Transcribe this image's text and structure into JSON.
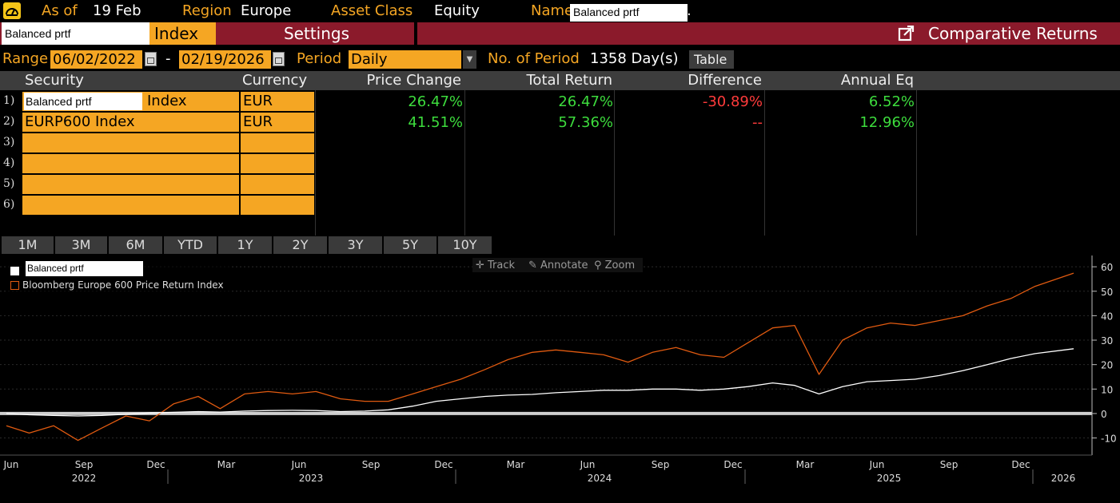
{
  "topbar": {
    "as_of_label": "As of",
    "as_of_value": "19 Feb",
    "region_label": "Region",
    "region_value": "Europe",
    "asset_class_label": "Asset Class",
    "asset_class_value": "Equity",
    "name_label": "Name",
    "name_value": "Balanced prtf",
    "name_suffix": "."
  },
  "header": {
    "security_input": "Balanced prtf",
    "security_type": "Index",
    "settings_label": "Settings",
    "title": "Comparative Returns"
  },
  "controls": {
    "range_label": "Range",
    "start_date": "06/02/2022",
    "dash": "-",
    "end_date": "02/19/2026",
    "period_label": "Period",
    "period_value": "Daily",
    "num_period_label": "No. of Period",
    "num_period_value": "1358 Day(s)",
    "table_button": "Table"
  },
  "table": {
    "columns": [
      "Security",
      "Currency",
      "Price Change",
      "Total Return",
      "Difference",
      "Annual Eq"
    ],
    "rows": [
      {
        "num": "1)",
        "security": "Balanced prtf",
        "security_suffix": "Index",
        "currency": "EUR",
        "price_change": "26.47%",
        "total_return": "26.47%",
        "difference": "-30.89%",
        "annual_eq": "6.52%"
      },
      {
        "num": "2)",
        "security": "EURP600 Index",
        "security_suffix": "",
        "currency": "EUR",
        "price_change": "41.51%",
        "total_return": "57.36%",
        "difference": "--",
        "annual_eq": "12.96%"
      },
      {
        "num": "3)"
      },
      {
        "num": "4)"
      },
      {
        "num": "5)"
      },
      {
        "num": "6)"
      }
    ]
  },
  "range_buttons": [
    "1M",
    "3M",
    "6M",
    "YTD",
    "1Y",
    "2Y",
    "3Y",
    "5Y",
    "10Y"
  ],
  "chart_tools": [
    "Track",
    "Annotate",
    "Zoom"
  ],
  "legend": [
    {
      "name": "Balanced prtf",
      "color": "#ffffff"
    },
    {
      "name": "Bloomberg Europe 600 Price Return Index",
      "color": "#e05a10"
    }
  ],
  "chart_data": {
    "type": "line",
    "y_ticks": [
      60,
      50,
      40,
      30,
      20,
      10,
      0,
      -10
    ],
    "ylim": [
      -17,
      62
    ],
    "x_month_labels": [
      "Jun",
      "Sep",
      "Dec",
      "Mar",
      "Jun",
      "Sep",
      "Dec",
      "Mar",
      "Jun",
      "Sep",
      "Dec",
      "Mar",
      "Jun",
      "Sep",
      "Dec"
    ],
    "x_year_labels": [
      "2022",
      "2023",
      "2024",
      "2025",
      "2026"
    ],
    "series": [
      {
        "name": "Balanced prtf",
        "color": "#ffffff",
        "x": [
          "2022-06-02",
          "2022-07-01",
          "2022-08-01",
          "2022-09-01",
          "2022-10-01",
          "2022-11-01",
          "2022-12-01",
          "2023-01-01",
          "2023-02-01",
          "2023-03-01",
          "2023-04-01",
          "2023-05-01",
          "2023-06-01",
          "2023-07-01",
          "2023-08-01",
          "2023-09-01",
          "2023-10-01",
          "2023-11-01",
          "2023-12-01",
          "2024-01-01",
          "2024-02-01",
          "2024-03-01",
          "2024-04-01",
          "2024-05-01",
          "2024-06-01",
          "2024-07-01",
          "2024-08-01",
          "2024-09-01",
          "2024-10-01",
          "2024-11-01",
          "2024-12-01",
          "2025-01-01",
          "2025-02-01",
          "2025-03-01",
          "2025-04-01",
          "2025-05-01",
          "2025-06-01",
          "2025-07-01",
          "2025-08-01",
          "2025-09-01",
          "2025-10-01",
          "2025-11-01",
          "2025-12-01",
          "2026-01-01",
          "2026-02-19"
        ],
        "values": [
          0,
          -0.5,
          -0.8,
          -1.0,
          -0.8,
          -0.3,
          0.2,
          0.5,
          0.8,
          0.6,
          1.0,
          1.2,
          1.3,
          1.2,
          0.8,
          1.0,
          1.5,
          3.0,
          5.0,
          6.0,
          7.0,
          7.5,
          7.8,
          8.5,
          9.0,
          9.5,
          9.5,
          10.0,
          10.0,
          9.5,
          10.0,
          11.0,
          12.5,
          11.5,
          8.0,
          11.0,
          13.0,
          13.5,
          14.0,
          15.5,
          17.5,
          20.0,
          22.5,
          24.5,
          26.47
        ]
      },
      {
        "name": "Bloomberg Europe 600 Price Return Index",
        "color": "#e05a10",
        "x": [
          "2022-06-02",
          "2022-07-01",
          "2022-08-01",
          "2022-09-01",
          "2022-10-01",
          "2022-11-01",
          "2022-12-01",
          "2023-01-01",
          "2023-02-01",
          "2023-03-01",
          "2023-04-01",
          "2023-05-01",
          "2023-06-01",
          "2023-07-01",
          "2023-08-01",
          "2023-09-01",
          "2023-10-01",
          "2023-11-01",
          "2023-12-01",
          "2024-01-01",
          "2024-02-01",
          "2024-03-01",
          "2024-04-01",
          "2024-05-01",
          "2024-06-01",
          "2024-07-01",
          "2024-08-01",
          "2024-09-01",
          "2024-10-01",
          "2024-11-01",
          "2024-12-01",
          "2025-01-01",
          "2025-02-01",
          "2025-03-01",
          "2025-04-01",
          "2025-05-01",
          "2025-06-01",
          "2025-07-01",
          "2025-08-01",
          "2025-09-01",
          "2025-10-01",
          "2025-11-01",
          "2025-12-01",
          "2026-01-01",
          "2026-02-19"
        ],
        "values": [
          -5,
          -8,
          -5,
          -11,
          -6,
          -1,
          -3,
          4,
          7,
          2,
          8,
          9,
          8,
          9,
          6,
          5,
          5,
          8,
          11,
          14,
          18,
          22,
          25,
          26,
          25,
          24,
          21,
          25,
          27,
          24,
          23,
          29,
          35,
          36,
          16,
          30,
          35,
          37,
          36,
          38,
          40,
          44,
          47,
          52,
          57.4
        ]
      }
    ]
  }
}
